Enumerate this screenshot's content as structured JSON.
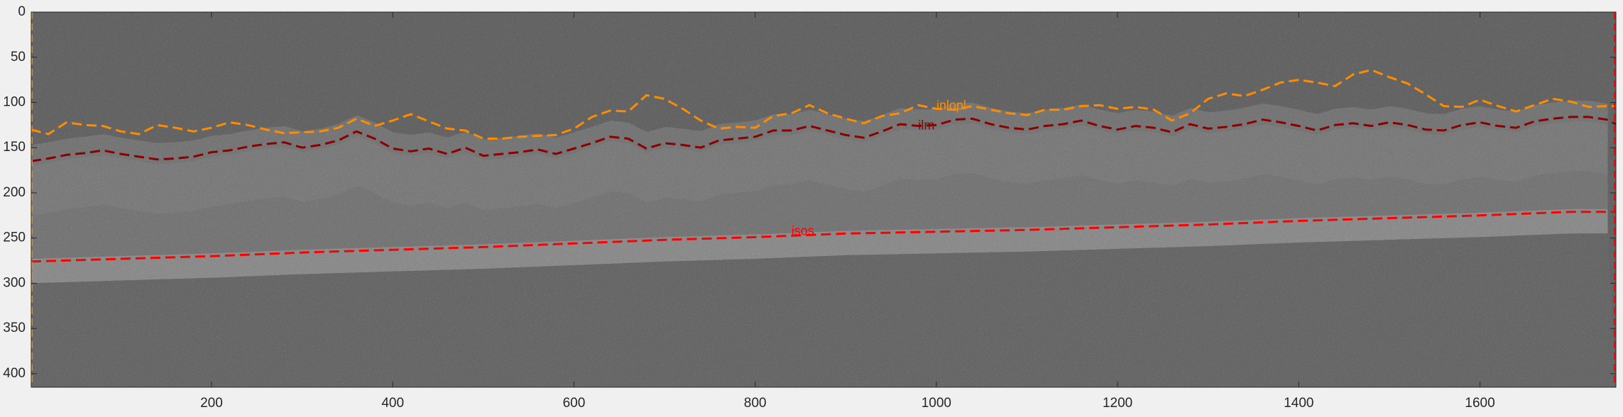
{
  "chart_data": {
    "type": "line",
    "title": "",
    "xlabel": "",
    "ylabel": "",
    "xlim": [
      1,
      1750
    ],
    "ylim": [
      0,
      415
    ],
    "y_reversed": true,
    "background": "grayscale OCT retinal B-scan image",
    "x_ticks": [
      200,
      400,
      600,
      800,
      1000,
      1200,
      1400,
      1600
    ],
    "y_ticks": [
      0,
      50,
      100,
      150,
      200,
      250,
      300,
      350,
      400
    ],
    "grid": false,
    "series": [
      {
        "name": "inlopl",
        "color": "#ff8c00",
        "style": "dashed",
        "label_at": [
          1000,
          104
        ],
        "x": [
          1,
          20,
          40,
          60,
          80,
          100,
          120,
          140,
          160,
          180,
          200,
          220,
          240,
          260,
          280,
          300,
          320,
          340,
          360,
          380,
          400,
          420,
          440,
          460,
          480,
          500,
          520,
          540,
          560,
          580,
          600,
          620,
          640,
          660,
          680,
          700,
          720,
          740,
          760,
          780,
          800,
          820,
          840,
          860,
          880,
          900,
          920,
          940,
          960,
          980,
          1000,
          1020,
          1040,
          1060,
          1080,
          1100,
          1120,
          1140,
          1160,
          1180,
          1200,
          1220,
          1240,
          1260,
          1280,
          1300,
          1320,
          1340,
          1360,
          1380,
          1400,
          1420,
          1440,
          1460,
          1480,
          1500,
          1520,
          1540,
          1560,
          1580,
          1600,
          1620,
          1640,
          1660,
          1680,
          1700,
          1720,
          1740,
          1750
        ],
        "y": [
          130,
          135,
          122,
          125,
          126,
          132,
          135,
          125,
          128,
          132,
          128,
          122,
          125,
          130,
          134,
          133,
          132,
          128,
          118,
          126,
          120,
          113,
          121,
          129,
          131,
          140,
          140,
          138,
          137,
          136,
          129,
          116,
          109,
          110,
          92,
          96,
          107,
          120,
          129,
          127,
          128,
          115,
          112,
          103,
          112,
          118,
          123,
          115,
          112,
          103,
          107,
          108,
          104,
          108,
          112,
          114,
          108,
          108,
          104,
          103,
          107,
          105,
          108,
          120,
          112,
          96,
          90,
          93,
          86,
          78,
          75,
          78,
          82,
          69,
          64,
          72,
          79,
          91,
          104,
          105,
          97,
          104,
          110,
          103,
          96,
          99,
          105,
          104,
          104
        ]
      },
      {
        "name": "ilm",
        "color": "#8b0000",
        "style": "dashed",
        "label_at": [
          980,
          126
        ],
        "x": [
          1,
          20,
          40,
          60,
          80,
          100,
          120,
          140,
          160,
          180,
          200,
          220,
          240,
          260,
          280,
          300,
          320,
          340,
          360,
          380,
          400,
          420,
          440,
          460,
          480,
          500,
          520,
          540,
          560,
          580,
          600,
          620,
          640,
          660,
          680,
          700,
          720,
          740,
          760,
          780,
          800,
          820,
          840,
          860,
          880,
          900,
          920,
          940,
          960,
          980,
          1000,
          1020,
          1040,
          1060,
          1080,
          1100,
          1120,
          1140,
          1160,
          1180,
          1200,
          1220,
          1240,
          1260,
          1280,
          1300,
          1320,
          1340,
          1360,
          1380,
          1400,
          1420,
          1440,
          1460,
          1480,
          1500,
          1520,
          1540,
          1560,
          1580,
          1600,
          1620,
          1640,
          1660,
          1680,
          1700,
          1720,
          1740,
          1750
        ],
        "y": [
          165,
          162,
          158,
          156,
          153,
          157,
          160,
          163,
          162,
          160,
          155,
          153,
          149,
          146,
          144,
          150,
          147,
          142,
          132,
          140,
          151,
          154,
          151,
          157,
          150,
          159,
          157,
          155,
          152,
          157,
          151,
          145,
          138,
          140,
          151,
          145,
          147,
          150,
          142,
          140,
          138,
          131,
          131,
          126,
          131,
          136,
          139,
          132,
          124,
          126,
          125,
          119,
          118,
          124,
          128,
          130,
          126,
          124,
          120,
          126,
          130,
          126,
          128,
          133,
          124,
          129,
          127,
          124,
          119,
          122,
          126,
          131,
          125,
          123,
          126,
          122,
          125,
          130,
          131,
          125,
          122,
          126,
          128,
          121,
          118,
          116,
          116,
          119,
          124
        ]
      },
      {
        "name": "isos",
        "color": "#ff0000",
        "style": "dashed",
        "label_at": [
          840,
          243
        ],
        "x": [
          1,
          100,
          200,
          300,
          400,
          500,
          600,
          700,
          800,
          900,
          1000,
          1100,
          1200,
          1300,
          1400,
          1500,
          1600,
          1700,
          1750
        ],
        "y": [
          276,
          273,
          270,
          266,
          263,
          260,
          256,
          252,
          249,
          245,
          243,
          241,
          238,
          235,
          231,
          228,
          225,
          221,
          221
        ]
      }
    ]
  }
}
